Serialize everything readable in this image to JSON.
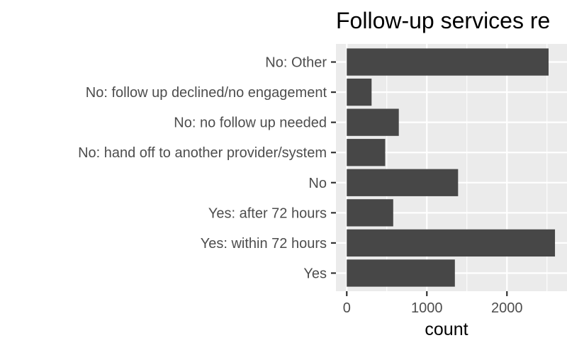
{
  "chart_data": {
    "type": "bar",
    "orientation": "horizontal",
    "title": "Follow-up services re",
    "xlabel": "count",
    "ylabel": "",
    "categories": [
      "No: Other",
      "No: follow up declined/no engagement",
      "No: no follow up needed",
      "No: hand off to another provider/system",
      "No",
      "Yes: after 72 hours",
      "Yes: within 72 hours",
      "Yes"
    ],
    "values": [
      2520,
      310,
      650,
      480,
      1390,
      580,
      2600,
      1350
    ],
    "xlim": [
      -135,
      2750
    ],
    "xticks": [
      0,
      1000,
      2000
    ],
    "xtick_labels": [
      "0",
      "1000",
      "2000"
    ],
    "grid": true,
    "legend": "none",
    "colors": {
      "bar": "#474747",
      "panel_background": "#ebebeb",
      "grid": "#ffffff",
      "tick_label": "#4d4d4d"
    }
  }
}
